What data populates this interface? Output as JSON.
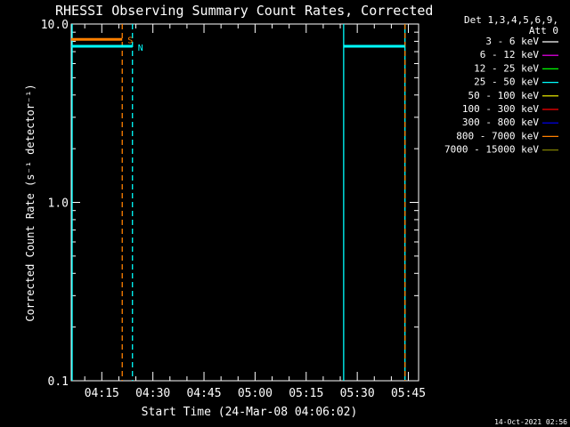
{
  "chart_data": {
    "type": "line",
    "title": "RHESSI Observing Summary Count Rates, Corrected",
    "xlabel": "Start Time (24-Mar-08 04:06:02)",
    "ylabel": "Corrected Count Rate (s⁻¹ detector⁻¹)",
    "yscale": "log",
    "ylim": [
      0.1,
      10.0
    ],
    "xlim": [
      "04:06:02",
      "05:48:00"
    ],
    "x_ticks": [
      "04:15",
      "04:30",
      "04:45",
      "05:00",
      "05:15",
      "05:30",
      "05:45"
    ],
    "y_ticks": [
      "0.1",
      "1.0",
      "10.0"
    ],
    "legend_header": [
      "Det 1,3,4,5,6,9,",
      "Att 0"
    ],
    "legend": [
      {
        "label": "3 - 6 keV",
        "color": "#ffffff"
      },
      {
        "label": "6 - 12 keV",
        "color": "#ff00ff"
      },
      {
        "label": "12 - 25 keV",
        "color": "#00ff00"
      },
      {
        "label": "25 - 50 keV",
        "color": "#00ffff"
      },
      {
        "label": "50 - 100 keV",
        "color": "#ffff00"
      },
      {
        "label": "100 - 300 keV",
        "color": "#ff0000"
      },
      {
        "label": "300 - 800 keV",
        "color": "#0000ff"
      },
      {
        "label": "800 - 7000 keV",
        "color": "#ff8000"
      },
      {
        "label": "7000 - 15000 keV",
        "color": "#808000"
      }
    ],
    "series": [
      {
        "name": "800 - 7000 keV",
        "color": "#ff8000",
        "x": [
          "04:06:02",
          "04:21:00"
        ],
        "y": [
          8.2,
          8.2
        ]
      },
      {
        "name": "25 - 50 keV",
        "color": "#00ffff",
        "x": [
          "04:06:02",
          "04:24:00"
        ],
        "y": [
          7.5,
          7.5
        ]
      },
      {
        "name": "25 - 50 keV",
        "color": "#00ffff",
        "x": [
          "05:26:00",
          "05:44:00"
        ],
        "y": [
          7.5,
          7.5
        ]
      }
    ],
    "markers": [
      {
        "text": "S",
        "time": "04:21:00",
        "color": "#ff8000"
      },
      {
        "text": "N",
        "time": "04:24:00",
        "color": "#00ffff"
      }
    ],
    "vlines": [
      {
        "time": "04:06:02",
        "color": "#00ffff",
        "style": "solid"
      },
      {
        "time": "04:21:00",
        "color": "#ff8000",
        "style": "dashed"
      },
      {
        "time": "04:24:00",
        "color": "#00ffff",
        "style": "dashed"
      },
      {
        "time": "05:26:00",
        "color": "#00ffff",
        "style": "solid"
      },
      {
        "time": "05:44:00",
        "color": "#00ffff",
        "style": "solid"
      },
      {
        "time": "05:44:00",
        "color": "#ff8000",
        "style": "dashed"
      }
    ],
    "footer": "14-Oct-2021 02:56"
  }
}
